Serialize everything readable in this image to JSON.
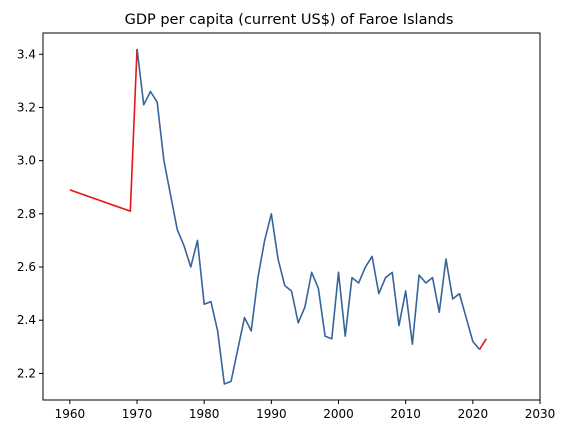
{
  "chart_data": {
    "type": "line",
    "title": "GDP per capita (current US$) of Faroe Islands",
    "xlabel": "",
    "ylabel": "",
    "xlim": [
      1956,
      2030
    ],
    "ylim": [
      2.1,
      3.48
    ],
    "xticks": [
      1960,
      1970,
      1980,
      1990,
      2000,
      2010,
      2020,
      2030
    ],
    "yticks": [
      2.2,
      2.4,
      2.6,
      2.8,
      3.0,
      3.2,
      3.4
    ],
    "ytick_labels": [
      "2.2",
      "2.4",
      "2.6",
      "2.8",
      "3.0",
      "3.2",
      "3.4"
    ],
    "grid": false,
    "series": [
      {
        "color": "#e8141a",
        "points": [
          [
            1960,
            2.89
          ],
          [
            1969,
            2.81
          ],
          [
            1970,
            3.42
          ]
        ]
      },
      {
        "color": "#e8141a",
        "points": [
          [
            2021,
            2.29
          ],
          [
            2022,
            2.33
          ]
        ]
      },
      {
        "color": "#36649a",
        "points": [
          [
            1970,
            3.42
          ],
          [
            1971,
            3.21
          ],
          [
            1972,
            3.26
          ],
          [
            1973,
            3.22
          ],
          [
            1974,
            3.0
          ],
          [
            1975,
            2.87
          ],
          [
            1976,
            2.74
          ],
          [
            1977,
            2.68
          ],
          [
            1978,
            2.6
          ],
          [
            1979,
            2.7
          ],
          [
            1980,
            2.46
          ],
          [
            1981,
            2.47
          ],
          [
            1982,
            2.36
          ],
          [
            1983,
            2.16
          ],
          [
            1984,
            2.17
          ],
          [
            1985,
            2.29
          ],
          [
            1986,
            2.41
          ],
          [
            1987,
            2.36
          ],
          [
            1988,
            2.56
          ],
          [
            1989,
            2.7
          ],
          [
            1990,
            2.8
          ],
          [
            1991,
            2.63
          ],
          [
            1992,
            2.53
          ],
          [
            1993,
            2.51
          ],
          [
            1994,
            2.39
          ],
          [
            1995,
            2.45
          ],
          [
            1996,
            2.58
          ],
          [
            1997,
            2.52
          ],
          [
            1998,
            2.34
          ],
          [
            1999,
            2.33
          ],
          [
            2000,
            2.58
          ],
          [
            2001,
            2.34
          ],
          [
            2002,
            2.56
          ],
          [
            2003,
            2.54
          ],
          [
            2004,
            2.6
          ],
          [
            2005,
            2.64
          ],
          [
            2006,
            2.5
          ],
          [
            2007,
            2.56
          ],
          [
            2008,
            2.58
          ],
          [
            2009,
            2.38
          ],
          [
            2010,
            2.51
          ],
          [
            2011,
            2.31
          ],
          [
            2012,
            2.57
          ],
          [
            2013,
            2.54
          ],
          [
            2014,
            2.56
          ],
          [
            2015,
            2.43
          ],
          [
            2016,
            2.63
          ],
          [
            2017,
            2.48
          ],
          [
            2018,
            2.5
          ],
          [
            2019,
            2.41
          ],
          [
            2020,
            2.32
          ],
          [
            2021,
            2.29
          ]
        ]
      }
    ]
  }
}
